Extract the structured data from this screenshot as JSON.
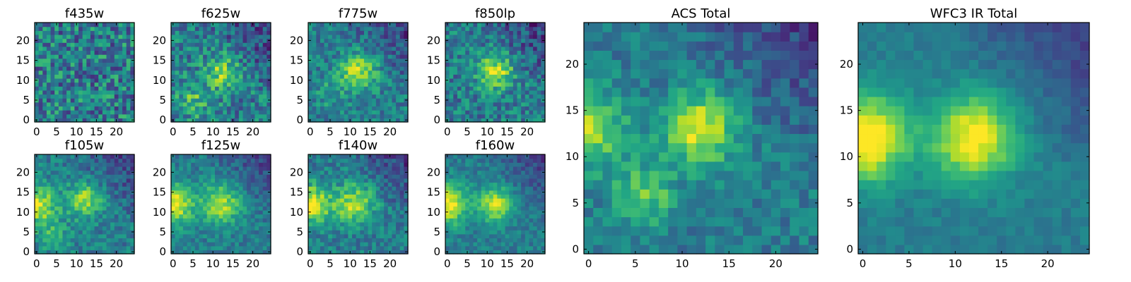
{
  "figure": {
    "background": "#ffffff"
  },
  "chart_data": [
    {
      "type": "heatmap",
      "title": "f435w",
      "x": [
        0,
        1,
        2,
        3,
        4,
        5,
        6,
        7,
        8,
        9,
        10,
        11,
        12,
        13,
        14,
        15,
        16,
        17,
        18,
        19,
        20,
        21,
        22,
        23,
        24
      ],
      "y": [
        0,
        1,
        2,
        3,
        4,
        5,
        6,
        7,
        8,
        9,
        10,
        11,
        12,
        13,
        14,
        15,
        16,
        17,
        18,
        19,
        20,
        21,
        22,
        23,
        24
      ],
      "xticks": [
        "0",
        "5",
        "10",
        "15",
        "20"
      ],
      "yticks": [
        "0",
        "5",
        "10",
        "15",
        "20"
      ],
      "xlim": [
        -0.5,
        24.5
      ],
      "ylim": [
        -0.5,
        24.5
      ],
      "colormap": "viridis",
      "structure": {
        "kind": "noise",
        "noise": 0.55,
        "blobs": []
      }
    },
    {
      "type": "heatmap",
      "title": "f625w",
      "x": [
        0,
        1,
        2,
        3,
        4,
        5,
        6,
        7,
        8,
        9,
        10,
        11,
        12,
        13,
        14,
        15,
        16,
        17,
        18,
        19,
        20,
        21,
        22,
        23,
        24
      ],
      "y": [
        0,
        1,
        2,
        3,
        4,
        5,
        6,
        7,
        8,
        9,
        10,
        11,
        12,
        13,
        14,
        15,
        16,
        17,
        18,
        19,
        20,
        21,
        22,
        23,
        24
      ],
      "xticks": [
        "0",
        "5",
        "10",
        "15",
        "20"
      ],
      "yticks": [
        "0",
        "5",
        "10",
        "15",
        "20"
      ],
      "xlim": [
        -0.5,
        24.5
      ],
      "ylim": [
        -0.5,
        24.5
      ],
      "colormap": "viridis",
      "structure": {
        "kind": "sources",
        "noise": 0.45,
        "blobs": [
          [
            12,
            12,
            0.35,
            3.0
          ],
          [
            5,
            5,
            0.25,
            3.0
          ]
        ]
      }
    },
    {
      "type": "heatmap",
      "title": "f775w",
      "x": [
        0,
        1,
        2,
        3,
        4,
        5,
        6,
        7,
        8,
        9,
        10,
        11,
        12,
        13,
        14,
        15,
        16,
        17,
        18,
        19,
        20,
        21,
        22,
        23,
        24
      ],
      "y": [
        0,
        1,
        2,
        3,
        4,
        5,
        6,
        7,
        8,
        9,
        10,
        11,
        12,
        13,
        14,
        15,
        16,
        17,
        18,
        19,
        20,
        21,
        22,
        23,
        24
      ],
      "xticks": [
        "0",
        "5",
        "10",
        "15",
        "20"
      ],
      "yticks": [
        "0",
        "5",
        "10",
        "15",
        "20"
      ],
      "xlim": [
        -0.5,
        24.5
      ],
      "ylim": [
        -0.5,
        24.5
      ],
      "colormap": "viridis",
      "structure": {
        "kind": "sources",
        "noise": 0.35,
        "blobs": [
          [
            12,
            12,
            0.45,
            3.2
          ],
          [
            5,
            7,
            0.15,
            2.5
          ]
        ]
      }
    },
    {
      "type": "heatmap",
      "title": "f850lp",
      "x": [
        0,
        1,
        2,
        3,
        4,
        5,
        6,
        7,
        8,
        9,
        10,
        11,
        12,
        13,
        14,
        15,
        16,
        17,
        18,
        19,
        20,
        21,
        22,
        23,
        24
      ],
      "y": [
        0,
        1,
        2,
        3,
        4,
        5,
        6,
        7,
        8,
        9,
        10,
        11,
        12,
        13,
        14,
        15,
        16,
        17,
        18,
        19,
        20,
        21,
        22,
        23,
        24
      ],
      "xticks": [
        "0",
        "5",
        "10",
        "15",
        "20"
      ],
      "yticks": [
        "0",
        "5",
        "10",
        "15",
        "20"
      ],
      "xlim": [
        -0.5,
        24.5
      ],
      "ylim": [
        -0.5,
        24.5
      ],
      "colormap": "viridis",
      "structure": {
        "kind": "sources",
        "noise": 0.4,
        "blobs": [
          [
            12,
            12,
            0.5,
            3.0
          ]
        ]
      }
    },
    {
      "type": "heatmap",
      "title": "f105w",
      "x": [
        0,
        1,
        2,
        3,
        4,
        5,
        6,
        7,
        8,
        9,
        10,
        11,
        12,
        13,
        14,
        15,
        16,
        17,
        18,
        19,
        20,
        21,
        22,
        23,
        24
      ],
      "y": [
        0,
        1,
        2,
        3,
        4,
        5,
        6,
        7,
        8,
        9,
        10,
        11,
        12,
        13,
        14,
        15,
        16,
        17,
        18,
        19,
        20,
        21,
        22,
        23,
        24
      ],
      "xticks": [
        "0",
        "5",
        "10",
        "15",
        "20"
      ],
      "yticks": [
        "0",
        "5",
        "10",
        "15",
        "20"
      ],
      "xlim": [
        -0.5,
        24.5
      ],
      "ylim": [
        -0.5,
        24.5
      ],
      "colormap": "viridis",
      "structure": {
        "kind": "sources",
        "noise": 0.3,
        "blobs": [
          [
            12,
            13,
            0.45,
            3.0
          ],
          [
            0,
            12,
            0.5,
            3.5
          ],
          [
            4,
            4,
            0.2,
            3.0
          ]
        ]
      }
    },
    {
      "type": "heatmap",
      "title": "f125w",
      "x": [
        0,
        1,
        2,
        3,
        4,
        5,
        6,
        7,
        8,
        9,
        10,
        11,
        12,
        13,
        14,
        15,
        16,
        17,
        18,
        19,
        20,
        21,
        22,
        23,
        24
      ],
      "y": [
        0,
        1,
        2,
        3,
        4,
        5,
        6,
        7,
        8,
        9,
        10,
        11,
        12,
        13,
        14,
        15,
        16,
        17,
        18,
        19,
        20,
        21,
        22,
        23,
        24
      ],
      "xticks": [
        "0",
        "5",
        "10",
        "15",
        "20"
      ],
      "yticks": [
        "0",
        "5",
        "10",
        "15",
        "20"
      ],
      "xlim": [
        -0.5,
        24.5
      ],
      "ylim": [
        -0.5,
        24.5
      ],
      "colormap": "viridis",
      "structure": {
        "kind": "sources",
        "noise": 0.25,
        "blobs": [
          [
            12,
            12,
            0.45,
            3.5
          ],
          [
            0,
            12,
            0.55,
            3.5
          ]
        ]
      }
    },
    {
      "type": "heatmap",
      "title": "f140w",
      "x": [
        0,
        1,
        2,
        3,
        4,
        5,
        6,
        7,
        8,
        9,
        10,
        11,
        12,
        13,
        14,
        15,
        16,
        17,
        18,
        19,
        20,
        21,
        22,
        23,
        24
      ],
      "y": [
        0,
        1,
        2,
        3,
        4,
        5,
        6,
        7,
        8,
        9,
        10,
        11,
        12,
        13,
        14,
        15,
        16,
        17,
        18,
        19,
        20,
        21,
        22,
        23,
        24
      ],
      "xticks": [
        "0",
        "5",
        "10",
        "15",
        "20"
      ],
      "yticks": [
        "0",
        "5",
        "10",
        "15",
        "20"
      ],
      "xlim": [
        -0.5,
        24.5
      ],
      "ylim": [
        -0.5,
        24.5
      ],
      "colormap": "viridis",
      "structure": {
        "kind": "sources",
        "noise": 0.3,
        "blobs": [
          [
            11,
            12,
            0.45,
            3.5
          ],
          [
            0,
            12,
            0.55,
            3.5
          ]
        ]
      }
    },
    {
      "type": "heatmap",
      "title": "f160w",
      "x": [
        0,
        1,
        2,
        3,
        4,
        5,
        6,
        7,
        8,
        9,
        10,
        11,
        12,
        13,
        14,
        15,
        16,
        17,
        18,
        19,
        20,
        21,
        22,
        23,
        24
      ],
      "y": [
        0,
        1,
        2,
        3,
        4,
        5,
        6,
        7,
        8,
        9,
        10,
        11,
        12,
        13,
        14,
        15,
        16,
        17,
        18,
        19,
        20,
        21,
        22,
        23,
        24
      ],
      "xticks": [
        "0",
        "5",
        "10",
        "15",
        "20"
      ],
      "yticks": [
        "0",
        "5",
        "10",
        "15",
        "20"
      ],
      "xlim": [
        -0.5,
        24.5
      ],
      "ylim": [
        -0.5,
        24.5
      ],
      "colormap": "viridis",
      "structure": {
        "kind": "sources",
        "noise": 0.22,
        "blobs": [
          [
            12,
            12,
            0.5,
            3.0
          ],
          [
            0,
            12,
            0.6,
            3.5
          ]
        ]
      }
    },
    {
      "type": "heatmap",
      "title": "ACS Total",
      "x": [
        0,
        1,
        2,
        3,
        4,
        5,
        6,
        7,
        8,
        9,
        10,
        11,
        12,
        13,
        14,
        15,
        16,
        17,
        18,
        19,
        20,
        21,
        22,
        23,
        24
      ],
      "y": [
        0,
        1,
        2,
        3,
        4,
        5,
        6,
        7,
        8,
        9,
        10,
        11,
        12,
        13,
        14,
        15,
        16,
        17,
        18,
        19,
        20,
        21,
        22,
        23,
        24
      ],
      "xticks": [
        "0",
        "5",
        "10",
        "15",
        "20"
      ],
      "yticks": [
        "0",
        "5",
        "10",
        "15",
        "20"
      ],
      "xlim": [
        -0.5,
        24.5
      ],
      "ylim": [
        -0.5,
        24.5
      ],
      "colormap": "viridis",
      "structure": {
        "kind": "sources",
        "noise": 0.25,
        "blobs": [
          [
            12,
            13,
            0.55,
            2.6
          ],
          [
            0,
            13,
            0.45,
            2.8
          ],
          [
            6,
            6,
            0.35,
            2.2
          ]
        ]
      }
    },
    {
      "type": "heatmap",
      "title": "WFC3 IR Total",
      "x": [
        0,
        1,
        2,
        3,
        4,
        5,
        6,
        7,
        8,
        9,
        10,
        11,
        12,
        13,
        14,
        15,
        16,
        17,
        18,
        19,
        20,
        21,
        22,
        23,
        24
      ],
      "y": [
        0,
        1,
        2,
        3,
        4,
        5,
        6,
        7,
        8,
        9,
        10,
        11,
        12,
        13,
        14,
        15,
        16,
        17,
        18,
        19,
        20,
        21,
        22,
        23,
        24
      ],
      "xticks": [
        "0",
        "5",
        "10",
        "15",
        "20"
      ],
      "yticks": [
        "0",
        "5",
        "10",
        "15",
        "20"
      ],
      "xlim": [
        -0.5,
        24.5
      ],
      "ylim": [
        -0.5,
        24.5
      ],
      "colormap": "viridis",
      "structure": {
        "kind": "sources",
        "noise": 0.12,
        "blobs": [
          [
            12,
            12,
            0.6,
            3.2
          ],
          [
            0,
            12,
            0.7,
            3.2
          ]
        ]
      }
    }
  ]
}
